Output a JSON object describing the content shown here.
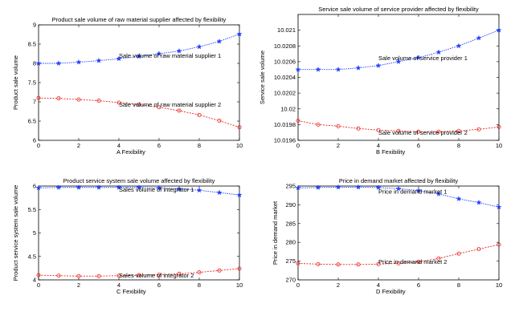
{
  "chart_data": [
    {
      "type": "line",
      "title": "Product sale volume of raw material supplier affected by flexibility",
      "xlabel": "A   Fexibility",
      "ylabel": "Product sale volume",
      "xlim": [
        0,
        10
      ],
      "ylim": [
        6,
        9
      ],
      "xticks": [
        "0",
        "2",
        "4",
        "6",
        "8",
        "10"
      ],
      "yticks": [
        "6",
        "6.5",
        "7",
        "7.5",
        "8",
        "8.5",
        "9"
      ],
      "x": [
        0,
        1,
        2,
        3,
        4,
        5,
        6,
        7,
        8,
        9,
        10
      ],
      "series": [
        {
          "values": [
            8.0,
            8.0,
            8.03,
            8.07,
            8.12,
            8.18,
            8.25,
            8.32,
            8.43,
            8.57,
            8.76
          ],
          "color": "#1f3fff",
          "marker": "star"
        },
        {
          "values": [
            7.1,
            7.09,
            7.06,
            7.03,
            6.98,
            6.93,
            6.86,
            6.77,
            6.66,
            6.51,
            6.34
          ],
          "color": "#e8231f",
          "marker": "circle"
        }
      ],
      "annotations": [
        {
          "text": "Sale volume of raw material supplier 1",
          "x": 4.0,
          "y": 8.15
        },
        {
          "text": "Sale volume of raw material supplier 2",
          "x": 4.0,
          "y": 6.88
        }
      ]
    },
    {
      "type": "line",
      "title": "Service sale volume of service provider affected by flexibility",
      "xlabel": "B   Fexibility",
      "ylabel": "Service sale volume",
      "xlim": [
        0,
        10
      ],
      "ylim": [
        10.0196,
        10.0212
      ],
      "xticks": [
        "0",
        "2",
        "4",
        "6",
        "8",
        "10"
      ],
      "yticks": [
        "10.0196",
        "10.0198",
        "10.02",
        "10.0202",
        "10.0204",
        "10.0206",
        "10.0208",
        "10.021"
      ],
      "x": [
        0,
        1,
        2,
        3,
        4,
        5,
        6,
        7,
        8,
        9,
        10
      ],
      "series": [
        {
          "values": [
            10.0205,
            10.0205,
            10.0205,
            10.02052,
            10.02055,
            10.0206,
            10.02065,
            10.02072,
            10.0208,
            10.0209,
            10.021
          ],
          "color": "#1f3fff",
          "marker": "star"
        },
        {
          "values": [
            10.01985,
            10.0198,
            10.01978,
            10.01975,
            10.01973,
            10.01972,
            10.01971,
            10.01971,
            10.01972,
            10.01974,
            10.01977
          ],
          "color": "#e8231f",
          "marker": "circle"
        }
      ],
      "annotations": [
        {
          "text": "Sale volume of service provider 1",
          "x": 4.0,
          "y": 10.02062
        },
        {
          "text": "Sale volume of service provider 2",
          "x": 4.0,
          "y": 10.01967
        }
      ]
    },
    {
      "type": "line",
      "title": "Product service system sale volume  affected by flexibility",
      "xlabel": "C   Fexibility",
      "ylabel": "Product service system sale volume",
      "xlim": [
        0,
        10
      ],
      "ylim": [
        4,
        6
      ],
      "xticks": [
        "0",
        "2",
        "4",
        "6",
        "8",
        "10"
      ],
      "yticks": [
        "4",
        "4.5",
        "5",
        "5.5",
        "6"
      ],
      "x": [
        0,
        1,
        2,
        3,
        4,
        5,
        6,
        7,
        8,
        9,
        10
      ],
      "series": [
        {
          "values": [
            5.96,
            5.97,
            5.97,
            5.97,
            5.97,
            5.97,
            5.96,
            5.94,
            5.91,
            5.86,
            5.81
          ],
          "color": "#1f3fff",
          "marker": "star"
        },
        {
          "values": [
            4.1,
            4.09,
            4.08,
            4.08,
            4.09,
            4.1,
            4.11,
            4.13,
            4.16,
            4.2,
            4.24
          ],
          "color": "#e8231f",
          "marker": "circle"
        }
      ],
      "annotations": [
        {
          "text": "Sales volume of integrator 1",
          "x": 4.0,
          "y": 5.88
        },
        {
          "text": "Sales volume of integrator 2",
          "x": 4.0,
          "y": 4.05
        }
      ]
    },
    {
      "type": "line",
      "title": "Price in demand market affected by flexibility",
      "xlabel": "D   Fexibility",
      "ylabel": "Price in demand market",
      "xlim": [
        0,
        10
      ],
      "ylim": [
        270,
        295
      ],
      "xticks": [
        "0",
        "2",
        "4",
        "6",
        "8",
        "10"
      ],
      "yticks": [
        "270",
        "275",
        "280",
        "285",
        "290",
        "295"
      ],
      "x": [
        0,
        1,
        2,
        3,
        4,
        5,
        6,
        7,
        8,
        9,
        10
      ],
      "series": [
        {
          "values": [
            294.5,
            294.6,
            294.7,
            294.7,
            294.6,
            294.3,
            293.8,
            292.9,
            291.6,
            290.6,
            289.4
          ],
          "color": "#1f3fff",
          "marker": "star"
        },
        {
          "values": [
            274.4,
            274.2,
            274.1,
            274.1,
            274.2,
            274.4,
            274.8,
            275.7,
            277.0,
            278.2,
            279.4
          ],
          "color": "#e8231f",
          "marker": "circle"
        }
      ],
      "annotations": [
        {
          "text": "Price in demand market 1",
          "x": 4.0,
          "y": 293.0
        },
        {
          "text": "Price in demand market 2",
          "x": 4.0,
          "y": 274.3
        }
      ]
    }
  ]
}
